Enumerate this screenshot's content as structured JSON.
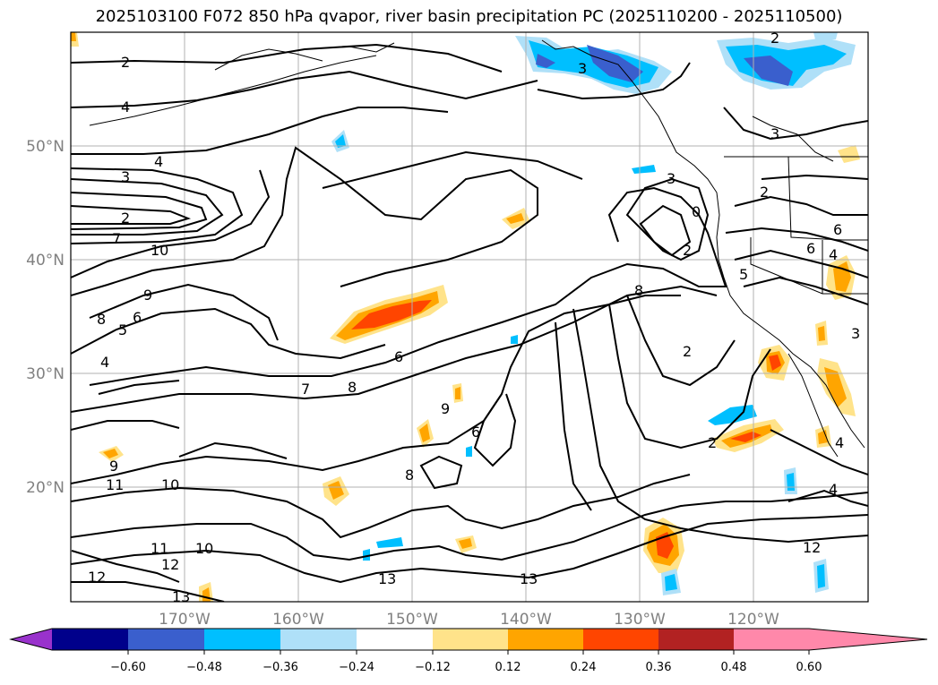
{
  "title": "2025103100 F072 850 hPa qvapor, river basin precipitation PC (2025110200 - 2025110500)",
  "lat_labels": [
    "50°N",
    "40°N",
    "30°N",
    "20°N"
  ],
  "lon_labels": [
    "170°W",
    "160°W",
    "150°W",
    "140°W",
    "130°W",
    "120°W"
  ],
  "colorbar": {
    "levels": [
      "−0.60",
      "−0.48",
      "−0.36",
      "−0.24",
      "−0.12",
      "0.12",
      "0.24",
      "0.36",
      "0.48",
      "0.60"
    ],
    "colors": [
      "#9932cc",
      "#00008b",
      "#3a5fcd",
      "#00bfff",
      "#afe0f8",
      "#ffffff",
      "#ffe38a",
      "#ffa500",
      "#ff4500",
      "#b22222",
      "#ff88aa"
    ]
  },
  "contour_labels": [
    "2",
    "4",
    "4",
    "3",
    "2",
    "7",
    "10",
    "9",
    "8",
    "6",
    "5",
    "4",
    "9",
    "11",
    "10",
    "11",
    "10",
    "12",
    "12",
    "13",
    "6",
    "7",
    "8",
    "9",
    "6",
    "8",
    "13",
    "13",
    "3",
    "0",
    "2",
    "2",
    "5",
    "8",
    "2",
    "2",
    "4",
    "3",
    "2",
    "3",
    "6",
    "4",
    "3",
    "12",
    "6",
    "4"
  ]
}
